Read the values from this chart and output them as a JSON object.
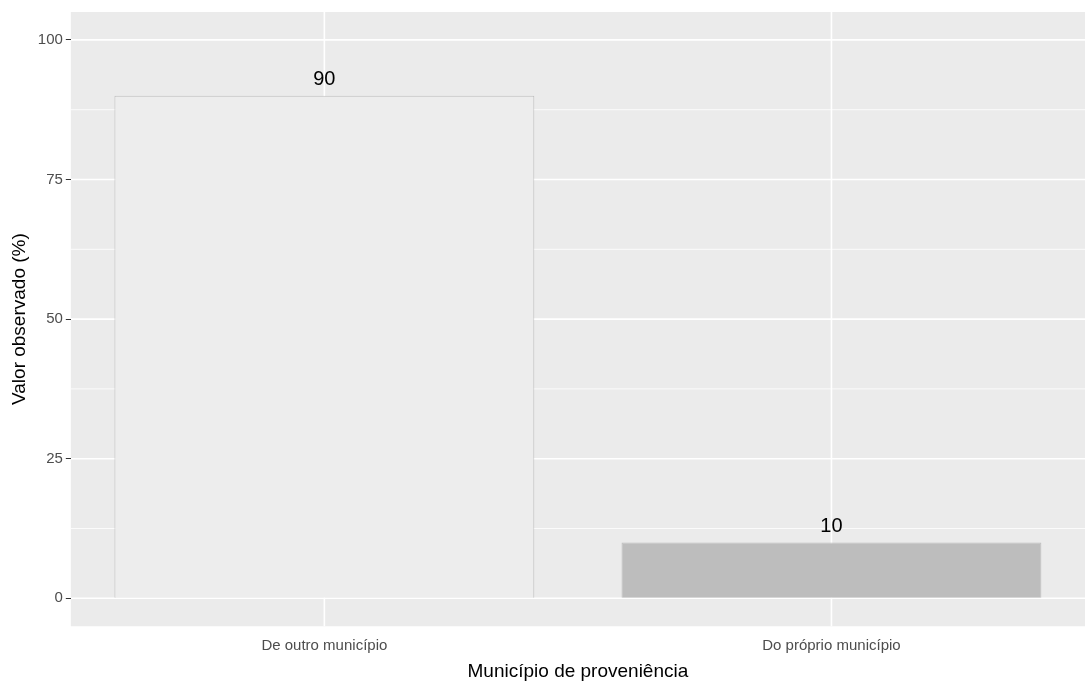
{
  "chart_data": {
    "type": "bar",
    "xlabel": "Município de proveniência",
    "ylabel": "Valor observado (%)",
    "categories": [
      "De outro município",
      "Do próprio município"
    ],
    "values": [
      90,
      10
    ],
    "colors": [
      "#ededed",
      "#bdbdbd"
    ],
    "ylim": [
      -5,
      105
    ],
    "yticks": [
      0,
      25,
      50,
      75,
      100
    ],
    "grid": true,
    "legend": false,
    "data_labels": true
  }
}
